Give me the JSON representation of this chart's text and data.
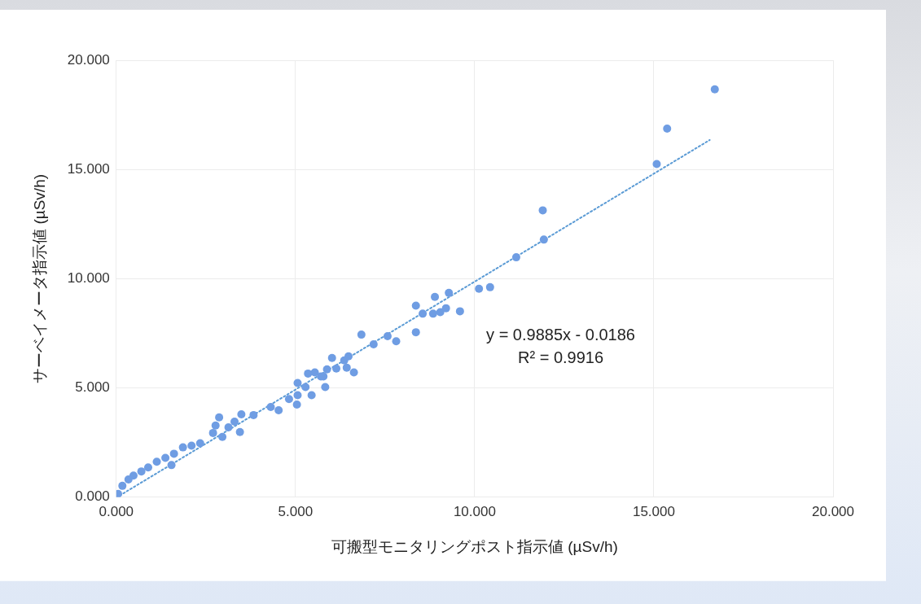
{
  "chart_data": {
    "type": "scatter",
    "xlabel": "可搬型モニタリングポスト指示値 (µSv/h)",
    "ylabel": "サーベイメータ指示値 (µSv/h)",
    "xlim": [
      0,
      20
    ],
    "ylim": [
      0,
      20
    ],
    "xticks": [
      {
        "value": 0,
        "label": "0.000"
      },
      {
        "value": 5,
        "label": "5.000"
      },
      {
        "value": 10,
        "label": "10.000"
      },
      {
        "value": 15,
        "label": "15.000"
      },
      {
        "value": 20,
        "label": "20.000"
      }
    ],
    "yticks": [
      {
        "value": 0,
        "label": "0.000"
      },
      {
        "value": 5,
        "label": "5.000"
      },
      {
        "value": 10,
        "label": "10.000"
      },
      {
        "value": 15,
        "label": "15.000"
      },
      {
        "value": 20,
        "label": "20.000"
      }
    ],
    "grid": true,
    "legend": false,
    "marker": "circle",
    "series": [
      {
        "color": "#6f9de3",
        "x": [
          16.7,
          15.37,
          15.08,
          11.9,
          11.93,
          11.16,
          10.12,
          10.43,
          9.28,
          8.89,
          8.36,
          8.55,
          8.84,
          9.04,
          9.2,
          9.59,
          8.36,
          6.84,
          7.57,
          7.81,
          7.18,
          6.02,
          6.48,
          6.36,
          6.14,
          5.88,
          6.43,
          6.63,
          5.78,
          5.83,
          5.54,
          5.71,
          5.35,
          5.06,
          5.28,
          5.45,
          5.06,
          4.82,
          5.04,
          4.31,
          4.53,
          3.83,
          3.49,
          3.3,
          3.45,
          2.87,
          2.77,
          3.13,
          2.7,
          2.96,
          2.34,
          2.1,
          1.86,
          1.61,
          1.54,
          1.37,
          1.13,
          0.89,
          0.7,
          0.48,
          0.34,
          0.17,
          0.05
        ],
        "values": [
          18.67,
          16.87,
          15.25,
          13.13,
          11.79,
          10.98,
          9.54,
          9.61,
          9.35,
          9.17,
          8.77,
          8.4,
          8.4,
          8.47,
          8.65,
          8.51,
          7.55,
          7.44,
          7.37,
          7.14,
          7.0,
          6.37,
          6.45,
          6.26,
          5.89,
          5.85,
          5.93,
          5.71,
          5.53,
          5.04,
          5.71,
          5.53,
          5.66,
          5.23,
          5.04,
          4.67,
          4.67,
          4.49,
          4.24,
          4.13,
          3.98,
          3.76,
          3.79,
          3.46,
          2.98,
          3.65,
          3.28,
          3.2,
          2.94,
          2.76,
          2.47,
          2.36,
          2.28,
          1.99,
          1.47,
          1.8,
          1.62,
          1.36,
          1.18,
          0.99,
          0.81,
          0.52,
          0.15
        ]
      },
      {
        "type": "line",
        "color": "#5b9bd5",
        "line_style": "dotted",
        "marker": "none",
        "x": [
          0.1,
          16.56
        ],
        "values": [
          0.08,
          16.35
        ]
      }
    ],
    "annotations": [
      "y = 0.9885x - 0.0186",
      "R² = 0.9916"
    ]
  }
}
